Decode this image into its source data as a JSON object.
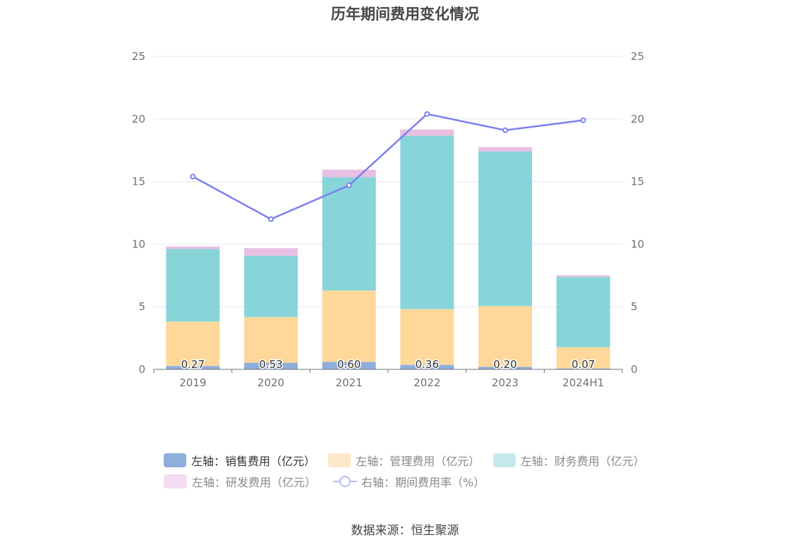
{
  "title": "历年期间费用变化情况",
  "source": "数据来源：恒生聚源",
  "colors": {
    "sales": "#8eaedc",
    "admin": "#fed89b",
    "finance": "#87d5d9",
    "rnd": "#e6bfe2",
    "rate": "#7b7ff0",
    "grid": "#e3e5ea",
    "axis": "#6e7079"
  },
  "legend": [
    {
      "label": "左轴：销售费用（亿元）",
      "icon": "bar-swatch",
      "color": "#8eaedc",
      "active": true
    },
    {
      "label": "左轴：管理费用（亿元）",
      "icon": "bar-swatch",
      "color": "#fde8c7",
      "active": false
    },
    {
      "label": "左轴：财务费用（亿元）",
      "icon": "bar-swatch",
      "color": "#c4e9ec",
      "active": false
    },
    {
      "label": "左轴：研发费用（亿元）",
      "icon": "bar-swatch",
      "color": "#f2dcf0",
      "active": false
    },
    {
      "label": "右轴：期间费用率（%）",
      "icon": "line-circle-swatch",
      "color": "#b8baf5",
      "active": false
    }
  ],
  "chart_data": {
    "type": "bar",
    "title": "历年期间费用变化情况",
    "categories": [
      "2019",
      "2020",
      "2021",
      "2022",
      "2023",
      "2024H1"
    ],
    "left_axis": {
      "ylim": [
        0,
        25
      ],
      "ticks": [
        "0",
        "5",
        "10",
        "15",
        "20",
        "25"
      ]
    },
    "right_axis": {
      "ylim": [
        0,
        25
      ],
      "ticks": [
        "0",
        "5",
        "10",
        "15",
        "20",
        "25"
      ]
    },
    "grid": true,
    "legend_position": "bottom",
    "series": [
      {
        "name": "左轴：销售费用（亿元）",
        "axis": "left",
        "stack": "total",
        "values": [
          0.27,
          0.53,
          0.6,
          0.36,
          0.2,
          0.07
        ],
        "labels": [
          "0.27",
          "0.53",
          "0.60",
          "0.36",
          "0.20",
          "0.07"
        ]
      },
      {
        "name": "左轴：管理费用（亿元）",
        "axis": "left",
        "stack": "total",
        "values": [
          3.55,
          3.65,
          5.7,
          4.45,
          4.85,
          1.7
        ]
      },
      {
        "name": "左轴：财务费用（亿元）",
        "axis": "left",
        "stack": "total",
        "values": [
          5.8,
          4.9,
          9.05,
          13.85,
          12.35,
          5.6
        ]
      },
      {
        "name": "左轴：研发费用（亿元）",
        "axis": "left",
        "stack": "total",
        "values": [
          0.2,
          0.6,
          0.6,
          0.5,
          0.35,
          0.15
        ]
      },
      {
        "name": "右轴：期间费用率（%）",
        "axis": "right",
        "type": "line",
        "values": [
          15.4,
          12.0,
          14.7,
          20.4,
          19.1,
          19.9
        ]
      }
    ]
  }
}
